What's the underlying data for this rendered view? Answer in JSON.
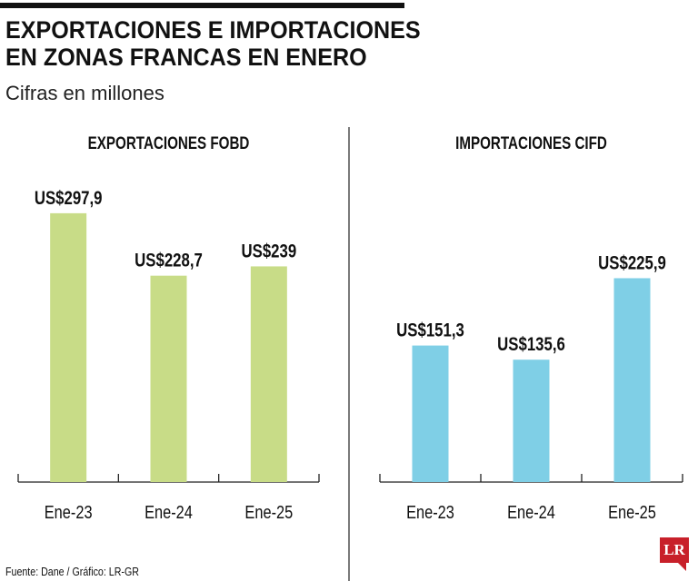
{
  "header": {
    "title_line1": "EXPORTACIONES E IMPORTACIONES",
    "title_line2": "EN ZONAS FRANCAS EN ENERO",
    "subtitle": "Cifras en millones"
  },
  "footer": {
    "source": "Fuente: Dane / Gráfico: LR-GR",
    "logo": "LR"
  },
  "chart_data": [
    {
      "type": "bar",
      "title": "EXPORTACIONES FOBD",
      "categories": [
        "Ene-23",
        "Ene-24",
        "Ene-25"
      ],
      "values": [
        297.9,
        228.7,
        239
      ],
      "labels": [
        "US$297,9",
        "US$228,7",
        "US$239"
      ],
      "color": "#c8dc87",
      "xlabel": "",
      "ylabel": "",
      "ylim": [
        0,
        300
      ],
      "grid": false
    },
    {
      "type": "bar",
      "title": "IMPORTACIONES CIFD",
      "categories": [
        "Ene-23",
        "Ene-24",
        "Ene-25"
      ],
      "values": [
        151.3,
        135.6,
        225.9
      ],
      "labels": [
        "US$151,3",
        "US$135,6",
        "US$225,9"
      ],
      "color": "#7fcfe6",
      "xlabel": "",
      "ylabel": "",
      "ylim": [
        0,
        300
      ],
      "grid": false
    }
  ]
}
